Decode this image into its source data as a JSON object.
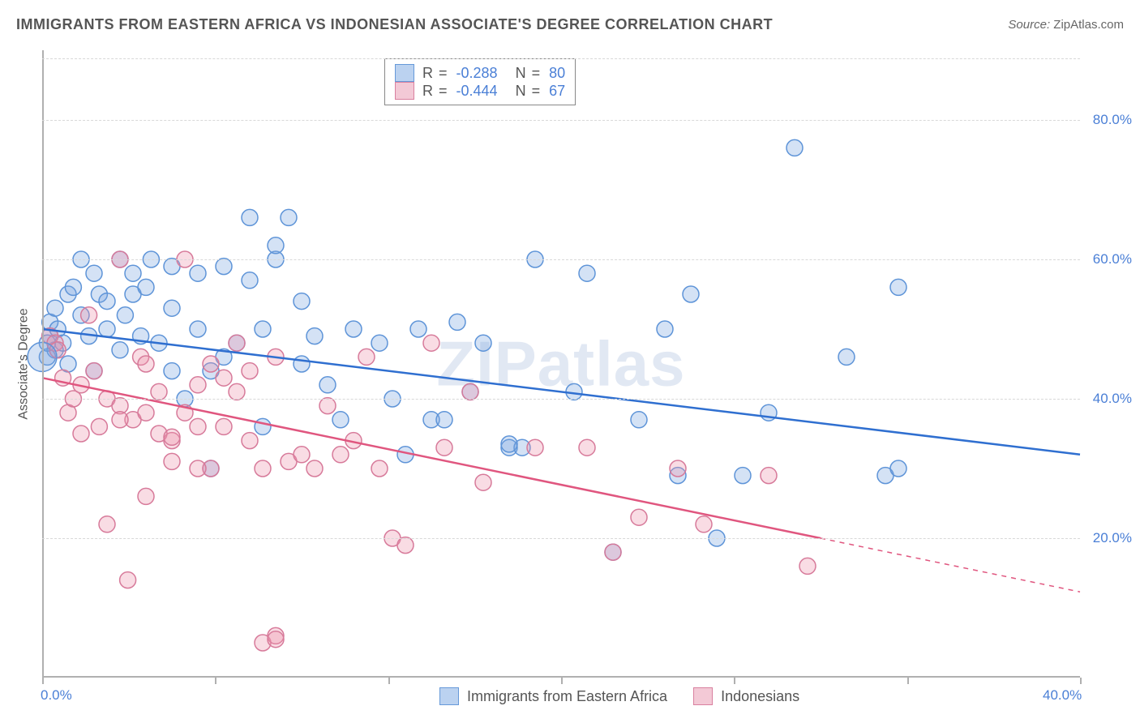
{
  "title": "IMMIGRANTS FROM EASTERN AFRICA VS INDONESIAN ASSOCIATE'S DEGREE CORRELATION CHART",
  "source_label": "Source:",
  "source_value": "ZipAtlas.com",
  "watermark": "ZIPatlas",
  "chart": {
    "type": "scatter",
    "background_color": "#ffffff",
    "grid_color": "#d8d8d8",
    "axis_color": "#b0b0b0",
    "text_color": "#555555",
    "value_color": "#4a7fd6",
    "xlim": [
      0,
      40
    ],
    "ylim": [
      0,
      90
    ],
    "ygrid_values": [
      20,
      40,
      60,
      80
    ],
    "ygrid_labels": [
      "20.0%",
      "40.0%",
      "60.0%",
      "80.0%"
    ],
    "xtick_values": [
      0,
      6.67,
      13.33,
      20,
      26.67,
      33.33,
      40
    ],
    "xtick_labels_start": "0.0%",
    "xtick_labels_end": "40.0%",
    "ylabel": "Associate's Degree",
    "marker_radius": 10,
    "marker_border_width": 1.5,
    "marker_fill_opacity": 0.32,
    "line_width": 2.5,
    "legend_swatch_size": 22,
    "title_fontsize": 18,
    "label_fontsize": 16,
    "tick_fontsize": 17,
    "legend_fontsize": 18
  },
  "series": [
    {
      "name": "Immigrants from Eastern Africa",
      "color_fill": "rgba(120,165,225,0.32)",
      "color_stroke": "#5e94d8",
      "line_color": "#2f6fd0",
      "swatch_fill": "#b8d0f0",
      "swatch_border": "#5e94d8",
      "r_value": "-0.288",
      "n_value": "80",
      "trend": {
        "x1": 0,
        "y1": 50,
        "x2": 40,
        "y2": 32
      },
      "points": [
        [
          0.3,
          49
        ],
        [
          0.3,
          51
        ],
        [
          0.5,
          47
        ],
        [
          0.5,
          53
        ],
        [
          0.6,
          50
        ],
        [
          0.8,
          48
        ],
        [
          1.0,
          55
        ],
        [
          1.0,
          45
        ],
        [
          1.2,
          56
        ],
        [
          1.5,
          52
        ],
        [
          1.5,
          60
        ],
        [
          1.8,
          49
        ],
        [
          2.0,
          58
        ],
        [
          2.0,
          44
        ],
        [
          2.2,
          55
        ],
        [
          2.5,
          54
        ],
        [
          2.5,
          50
        ],
        [
          3.0,
          60
        ],
        [
          3.0,
          47
        ],
        [
          3.2,
          52
        ],
        [
          3.5,
          55
        ],
        [
          3.5,
          58
        ],
        [
          3.8,
          49
        ],
        [
          4.0,
          56
        ],
        [
          4.2,
          60
        ],
        [
          4.5,
          48
        ],
        [
          5.0,
          59
        ],
        [
          5.0,
          53
        ],
        [
          5.0,
          44
        ],
        [
          5.5,
          40
        ],
        [
          6.0,
          58
        ],
        [
          6.0,
          50
        ],
        [
          6.5,
          30
        ],
        [
          6.5,
          44
        ],
        [
          7.0,
          46
        ],
        [
          7.0,
          59
        ],
        [
          7.5,
          48
        ],
        [
          8.0,
          57
        ],
        [
          8.0,
          66
        ],
        [
          8.5,
          50
        ],
        [
          8.5,
          36
        ],
        [
          9.0,
          60
        ],
        [
          9.0,
          62
        ],
        [
          9.5,
          66
        ],
        [
          10.0,
          45
        ],
        [
          10.0,
          54
        ],
        [
          10.5,
          49
        ],
        [
          11.0,
          42
        ],
        [
          11.5,
          37
        ],
        [
          12.0,
          50
        ],
        [
          13.0,
          48
        ],
        [
          13.5,
          40
        ],
        [
          14.0,
          32
        ],
        [
          14.5,
          50
        ],
        [
          15.0,
          37
        ],
        [
          16.0,
          51
        ],
        [
          16.5,
          41
        ],
        [
          17.0,
          48
        ],
        [
          18.0,
          33
        ],
        [
          18.5,
          33
        ],
        [
          19.0,
          60
        ],
        [
          20.5,
          41
        ],
        [
          21.0,
          58
        ],
        [
          22.0,
          18
        ],
        [
          23.0,
          37
        ],
        [
          24.0,
          50
        ],
        [
          24.5,
          29
        ],
        [
          25.0,
          55
        ],
        [
          26.0,
          20
        ],
        [
          27.0,
          29
        ],
        [
          28.0,
          38
        ],
        [
          29.0,
          76
        ],
        [
          31.0,
          46
        ],
        [
          32.5,
          29
        ],
        [
          33.0,
          56
        ],
        [
          33.0,
          30
        ],
        [
          0.2,
          46
        ],
        [
          15.5,
          37
        ],
        [
          18.0,
          33.5
        ],
        [
          0.2,
          48
        ]
      ]
    },
    {
      "name": "Indonesians",
      "color_fill": "rgba(235,145,170,0.32)",
      "color_stroke": "#d77a9a",
      "line_color": "#e0567f",
      "swatch_fill": "#f3c7d4",
      "swatch_border": "#d77a9a",
      "r_value": "-0.444",
      "n_value": "67",
      "trend": {
        "x1": 0,
        "y1": 43,
        "x2": 30,
        "y2": 20
      },
      "trend_extrap": {
        "x1": 30,
        "y1": 20,
        "x2": 40,
        "y2": 12.3
      },
      "points": [
        [
          0.3,
          49
        ],
        [
          0.5,
          48
        ],
        [
          0.8,
          43
        ],
        [
          1.0,
          38
        ],
        [
          1.5,
          35
        ],
        [
          1.5,
          42
        ],
        [
          1.8,
          52
        ],
        [
          2.0,
          44
        ],
        [
          2.2,
          36
        ],
        [
          2.5,
          40
        ],
        [
          2.5,
          22
        ],
        [
          3.0,
          39
        ],
        [
          3.0,
          60
        ],
        [
          3.3,
          14
        ],
        [
          3.5,
          37
        ],
        [
          3.8,
          46
        ],
        [
          4.0,
          45
        ],
        [
          4.0,
          38
        ],
        [
          4.0,
          26
        ],
        [
          4.5,
          35
        ],
        [
          4.5,
          41
        ],
        [
          5.0,
          34
        ],
        [
          5.0,
          31
        ],
        [
          5.5,
          60
        ],
        [
          5.5,
          38
        ],
        [
          6.0,
          36
        ],
        [
          6.0,
          42
        ],
        [
          6.5,
          45
        ],
        [
          6.5,
          30
        ],
        [
          7.0,
          36
        ],
        [
          7.0,
          43
        ],
        [
          7.5,
          48
        ],
        [
          7.5,
          41
        ],
        [
          8.0,
          44
        ],
        [
          8.0,
          34
        ],
        [
          8.5,
          30
        ],
        [
          8.5,
          5
        ],
        [
          9.0,
          46
        ],
        [
          9.0,
          6
        ],
        [
          9.5,
          31
        ],
        [
          10.0,
          32
        ],
        [
          10.5,
          30
        ],
        [
          11.0,
          39
        ],
        [
          11.5,
          32
        ],
        [
          12.0,
          34
        ],
        [
          12.5,
          46
        ],
        [
          13.0,
          30
        ],
        [
          13.5,
          20
        ],
        [
          14.0,
          19
        ],
        [
          15.0,
          48
        ],
        [
          15.5,
          33
        ],
        [
          16.5,
          41
        ],
        [
          17.0,
          28
        ],
        [
          19.0,
          33
        ],
        [
          21.0,
          33
        ],
        [
          22.0,
          18
        ],
        [
          23.0,
          23
        ],
        [
          24.5,
          30
        ],
        [
          25.5,
          22
        ],
        [
          28.0,
          29
        ],
        [
          29.5,
          16
        ],
        [
          9.0,
          5.5
        ],
        [
          5.0,
          34.5
        ],
        [
          3.0,
          37
        ],
        [
          6.0,
          30
        ],
        [
          0.6,
          47
        ],
        [
          1.2,
          40
        ]
      ]
    }
  ],
  "legend_bottom": [
    {
      "label": "Immigrants from Eastern Africa",
      "series": 0
    },
    {
      "label": "Indonesians",
      "series": 1
    }
  ]
}
